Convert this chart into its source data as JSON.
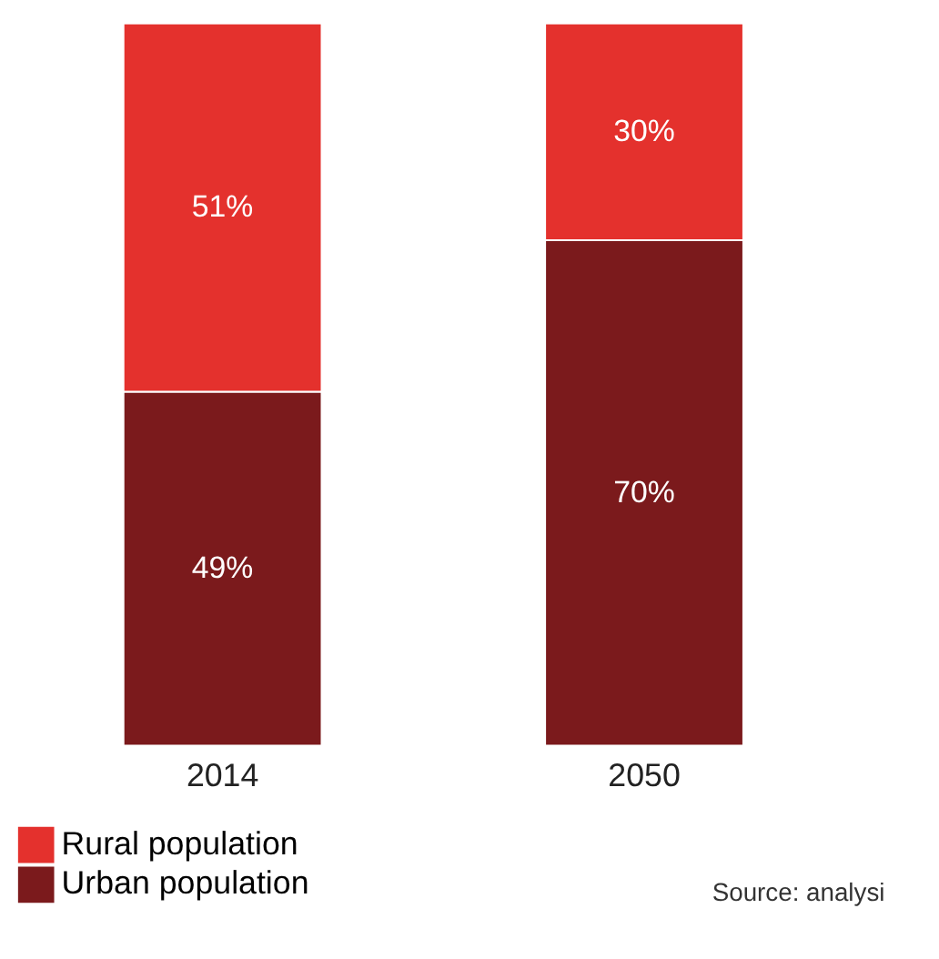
{
  "chart_data": {
    "type": "bar",
    "stacked": true,
    "legend": "bottom left",
    "categories": [
      "2014",
      "2050"
    ],
    "series": [
      {
        "name": "Urban population",
        "color": "#7b1a1c",
        "values": [
          49,
          70
        ],
        "value_labels": [
          "49%",
          "70%"
        ]
      },
      {
        "name": "Rural population",
        "color": "#e4312d",
        "values": [
          51,
          30
        ],
        "value_labels": [
          "51%",
          "30%"
        ]
      }
    ],
    "annotations": [
      "Source: analysi"
    ]
  }
}
